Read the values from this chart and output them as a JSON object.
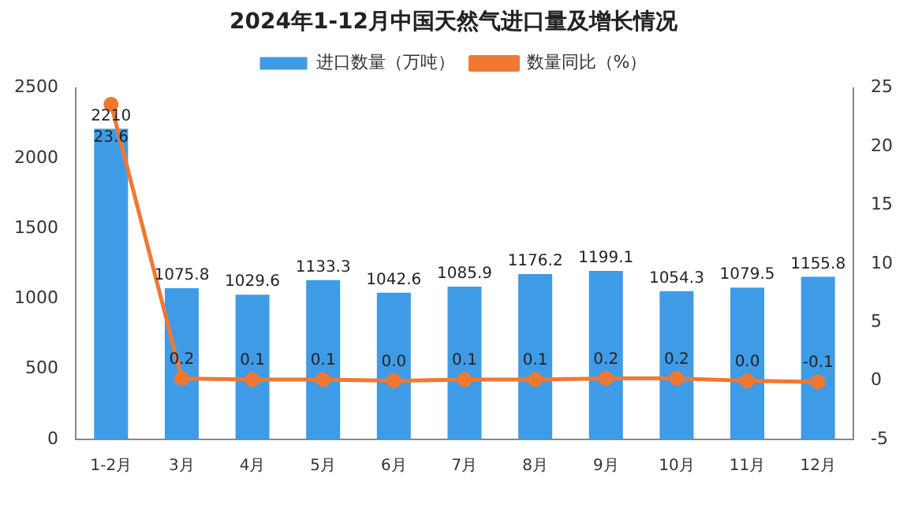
{
  "chart_data": {
    "type": "bar",
    "title": "2024年1-12月中国天然气进口量及增长情况",
    "categories": [
      "1-2月",
      "3月",
      "4月",
      "5月",
      "6月",
      "7月",
      "8月",
      "9月",
      "10月",
      "11月",
      "12月"
    ],
    "series": [
      {
        "name": "进口数量（万吨）",
        "color": "#3f9be6",
        "values": [
          2210,
          1075.8,
          1029.6,
          1133.3,
          1042.6,
          1085.9,
          1176.2,
          1199.1,
          1054.3,
          1079.5,
          1155.8
        ]
      },
      {
        "name": "数量同比（%）",
        "type": "line",
        "axis": "y2",
        "color": "#f07832",
        "values": [
          23.6,
          0.2,
          0.1,
          0.1,
          0.0,
          0.1,
          0.1,
          0.2,
          0.2,
          0.0,
          -0.1
        ],
        "value_labels": [
          "23.6",
          "0.2",
          "0.1",
          "0.1",
          "0.0",
          "0.1",
          "0.1",
          "0.2",
          "0.2",
          "0.0",
          "-0.1"
        ]
      }
    ],
    "ylim": [
      0,
      2500
    ],
    "yticks": [
      0,
      500,
      1000,
      1500,
      2000,
      2500
    ],
    "y2lim": [
      -5,
      25
    ],
    "y2ticks": [
      -5,
      0,
      5,
      10,
      15,
      20,
      25
    ],
    "grid": false,
    "legend": "top",
    "marker": "circle",
    "line_style": "solid",
    "data_labels": true
  }
}
